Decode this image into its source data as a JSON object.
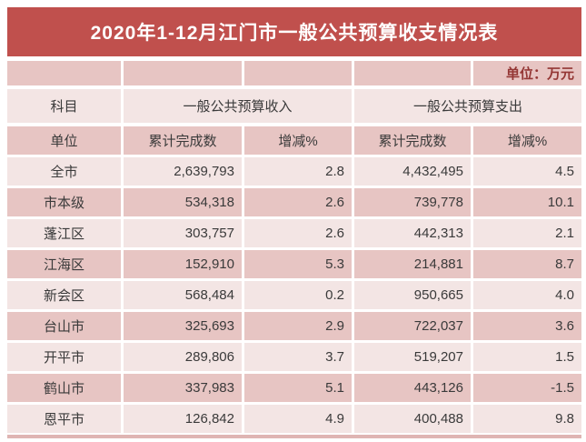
{
  "title": "2020年1-12月江门市一般公共预算收支情况表",
  "unit_note": "单位：万元",
  "colors": {
    "banner": "#c0504d",
    "band_dark": "#e7c5c3",
    "band_light": "#f3e5e4",
    "unit_text": "#943634",
    "bottom_strip": "#dfb5b3",
    "text": "#3a3a3a"
  },
  "header": {
    "subject": "科目",
    "group_income": "一般公共预算收入",
    "group_expense": "一般公共预算支出",
    "unit": "单位",
    "income_cumulative": "累计完成数",
    "income_change": "增减%",
    "expense_cumulative": "累计完成数",
    "expense_change": "增减%"
  },
  "rows": [
    {
      "name": "全市",
      "income": "2,639,793",
      "income_change": "2.8",
      "expense": "4,432,495",
      "expense_change": "4.5"
    },
    {
      "name": "市本级",
      "income": "534,318",
      "income_change": "2.6",
      "expense": "739,778",
      "expense_change": "10.1"
    },
    {
      "name": "蓬江区",
      "income": "303,757",
      "income_change": "2.6",
      "expense": "442,313",
      "expense_change": "2.1"
    },
    {
      "name": "江海区",
      "income": "152,910",
      "income_change": "5.3",
      "expense": "214,881",
      "expense_change": "8.7"
    },
    {
      "name": "新会区",
      "income": "568,484",
      "income_change": "0.2",
      "expense": "950,665",
      "expense_change": "4.0"
    },
    {
      "name": "台山市",
      "income": "325,693",
      "income_change": "2.9",
      "expense": "722,037",
      "expense_change": "3.6"
    },
    {
      "name": "开平市",
      "income": "289,806",
      "income_change": "3.7",
      "expense": "519,207",
      "expense_change": "1.5"
    },
    {
      "name": "鹤山市",
      "income": "337,983",
      "income_change": "5.1",
      "expense": "443,126",
      "expense_change": "-1.5"
    },
    {
      "name": "恩平市",
      "income": "126,842",
      "income_change": "4.9",
      "expense": "400,488",
      "expense_change": "9.8"
    }
  ]
}
